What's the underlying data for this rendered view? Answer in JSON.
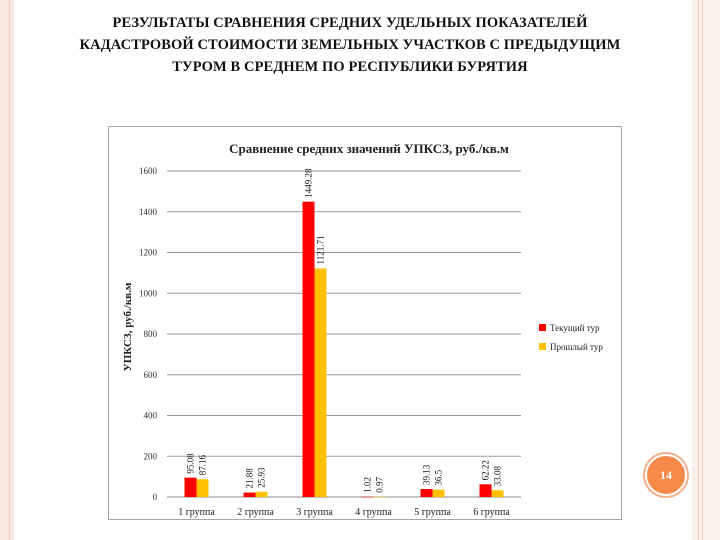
{
  "slide": {
    "title_lines": [
      "РЕЗУЛЬТАТЫ СРАВНЕНИЯ СРЕДНИХ УДЕЛЬНЫХ ПОКАЗАТЕЛЕЙ",
      "КАДАСТРОВОЙ СТОИМОСТИ ЗЕМЕЛЬНЫХ УЧАСТКОВ С ПРЕДЫДУЩИМ",
      "ТУРОМ В СРЕДНЕМ ПО РЕСПУБЛИКИ БУРЯТИЯ"
    ],
    "page_number": "14"
  },
  "chart_data": {
    "type": "bar",
    "title": "Сравнение средних значений УПКСЗ, руб./кв.м",
    "xlabel": "",
    "ylabel": "УПКСЗ, руб./кв.м",
    "ylim": [
      0,
      1600
    ],
    "yticks": [
      0,
      200,
      400,
      600,
      800,
      1000,
      1200,
      1400,
      1600
    ],
    "grid": "major horizontal",
    "legend_position": "right",
    "categories": [
      "1 группа",
      "2 группа",
      "3 группа",
      "4 группа",
      "5 группа",
      "6 группа"
    ],
    "series": [
      {
        "name": "Текущий тур",
        "color": "#ff0000",
        "values": [
          95.08,
          21.88,
          1449.28,
          1.02,
          39.13,
          62.22
        ],
        "labels": [
          "95.08",
          "21.88",
          "1449.28",
          "1.02",
          "39.13",
          "62.22"
        ]
      },
      {
        "name": "Прошлый тур",
        "color": "#ffc000",
        "values": [
          87.16,
          25.93,
          1121.71,
          0.97,
          36.5,
          33.08
        ],
        "labels": [
          "87.16",
          "25.93",
          "1121.71",
          "0.97",
          "36.5",
          "33.08"
        ]
      }
    ]
  }
}
